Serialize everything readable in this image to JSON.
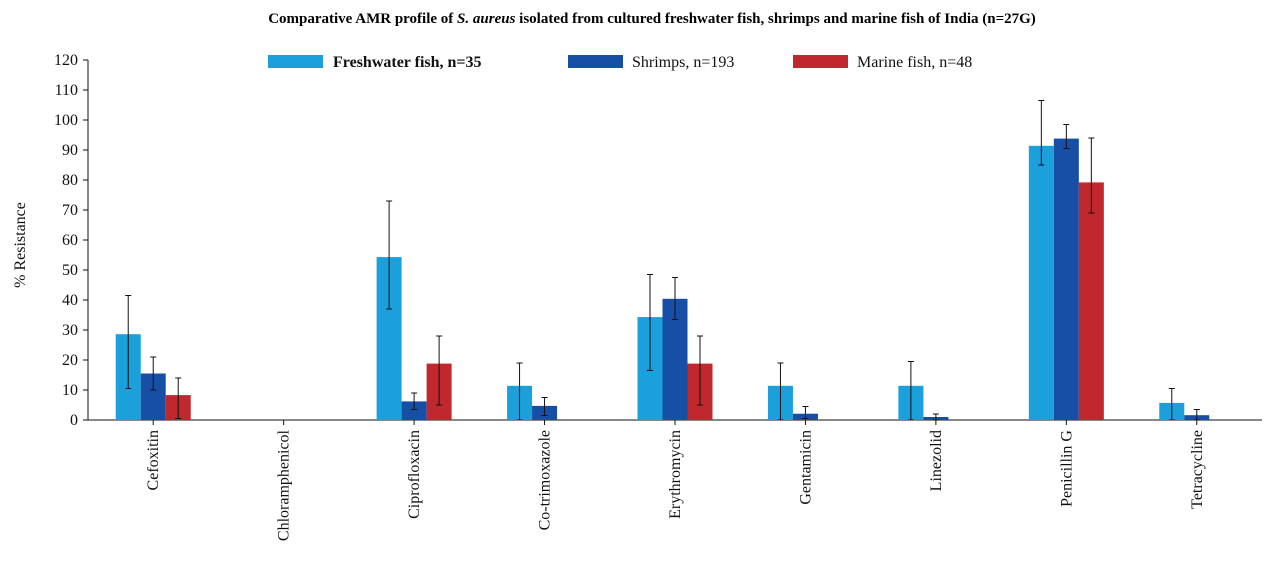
{
  "chart_data": {
    "type": "bar",
    "title_prefix": "Comparative AMR profile of ",
    "title_italic": "S. aureus",
    "title_suffix": " isolated from cultured freshwater fish, shrimps and marine fish of India (n=27G)",
    "ylabel": "% Resistance",
    "xlabel": "",
    "ylim": [
      0,
      120
    ],
    "yticks": [
      0,
      10,
      20,
      30,
      40,
      50,
      60,
      70,
      80,
      90,
      100,
      110,
      120
    ],
    "legend_position": "top-center",
    "grid": false,
    "categories": [
      "Cefoxitin",
      "Chloramphenicol",
      "Ciprofloxacin",
      "Co-trimoxazole",
      "Erythromycin",
      "Gentamicin",
      "Linezolid",
      "Penicillin G",
      "Tetracycline"
    ],
    "series": [
      {
        "name": "Freshwater fish, n=35",
        "color": "#1ba0dc",
        "values": [
          28.6,
          0,
          54.3,
          11.4,
          34.3,
          11.4,
          11.4,
          91.4,
          5.7
        ],
        "err_low": [
          10.5,
          0,
          37,
          0,
          16.5,
          0,
          0,
          85,
          0
        ],
        "err_high": [
          41.5,
          0,
          73,
          19,
          48.5,
          19,
          19.5,
          106.5,
          10.5
        ]
      },
      {
        "name": "Shrimps, n=193",
        "color": "#174ea6",
        "values": [
          15.5,
          0,
          6.2,
          4.7,
          40.4,
          2.1,
          1.0,
          93.8,
          1.6
        ],
        "err_low": [
          10,
          0,
          3.5,
          1.5,
          33.5,
          0.5,
          0,
          90.5,
          0
        ],
        "err_high": [
          21,
          0,
          9,
          7.5,
          47.5,
          4.5,
          2,
          98.5,
          3.5
        ]
      },
      {
        "name": "Marine fish, n=48",
        "color": "#c0282d",
        "values": [
          8.3,
          0,
          18.8,
          0,
          18.8,
          0,
          0,
          79.2,
          0
        ],
        "err_low": [
          0.5,
          0,
          5,
          0,
          5,
          0,
          0,
          69,
          0
        ],
        "err_high": [
          14,
          0,
          28,
          0,
          28,
          0,
          0,
          94,
          0
        ]
      }
    ]
  }
}
